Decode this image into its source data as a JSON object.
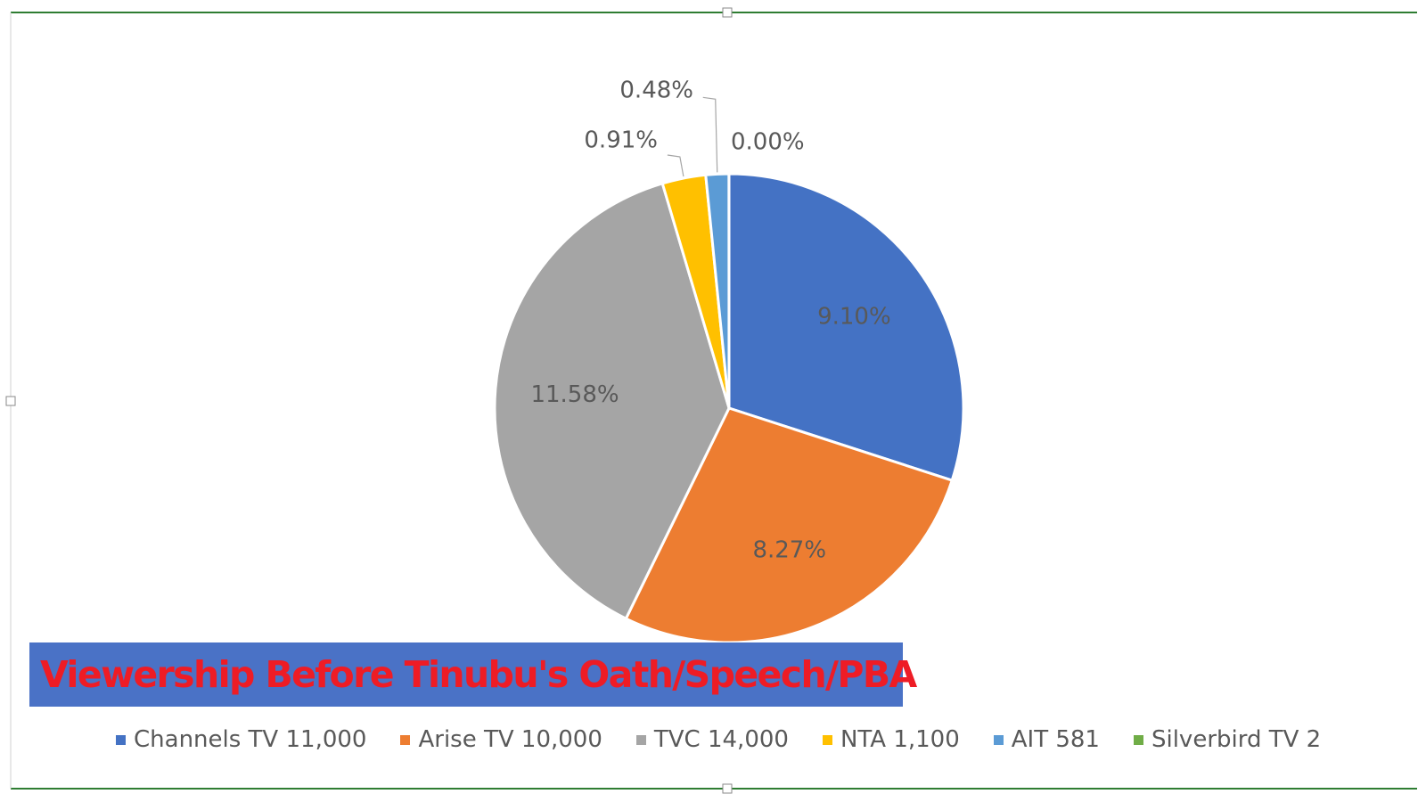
{
  "chart_data": {
    "type": "pie",
    "title": "Viewership Before Tinubu's Oath/Speech/PBA",
    "slices": [
      {
        "name": "Channels TV",
        "value": 11000,
        "percent_label": "9.10%",
        "color": "#4472c4",
        "legend": "Channels TV 11,000"
      },
      {
        "name": "Arise TV",
        "value": 10000,
        "percent_label": "8.27%",
        "color": "#ed7d31",
        "legend": "Arise TV 10,000"
      },
      {
        "name": "TVC",
        "value": 14000,
        "percent_label": "11.58%",
        "color": "#a5a5a5",
        "legend": "TVC 14,000"
      },
      {
        "name": "NTA",
        "value": 1100,
        "percent_label": "0.91%",
        "color": "#ffc000",
        "legend": "NTA 1,100"
      },
      {
        "name": "AIT",
        "value": 581,
        "percent_label": "0.48%",
        "color": "#5b9bd5",
        "legend": "AIT 581"
      },
      {
        "name": "Silverbird TV",
        "value": 2,
        "percent_label": "0.00%",
        "color": "#70ad47",
        "legend": "Silverbird TV 2"
      }
    ],
    "legend_position": "bottom"
  }
}
